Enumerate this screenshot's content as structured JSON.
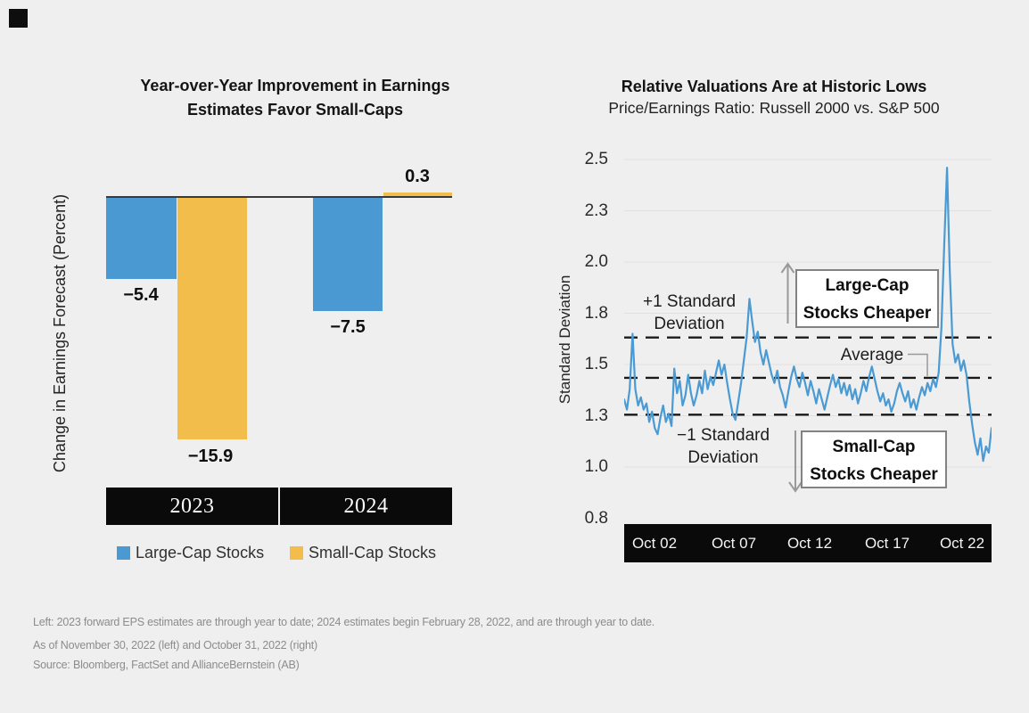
{
  "brand": {
    "logo_mark": "black-square-logo"
  },
  "chart_data": [
    {
      "type": "bar",
      "title": "Year-over-Year Improvement in Earnings Estimates Favor Small-Caps",
      "ylabel": "Change in Earnings Forecast (Percent)",
      "categories": [
        "2023",
        "2024"
      ],
      "series": [
        {
          "name": "Large-Cap Stocks",
          "color": "#4a99d3",
          "values": [
            -5.4,
            -7.5
          ]
        },
        {
          "name": "Small-Cap Stocks",
          "color": "#f3bd4b",
          "values": [
            -15.9,
            0.3
          ]
        }
      ],
      "value_labels": [
        "−5.4",
        "−15.9",
        "−7.5",
        "0.3"
      ],
      "legend_position": "bottom",
      "grid": false
    },
    {
      "type": "line",
      "title": "Relative Valuations Are at Historic Lows",
      "subtitle": "Price/Earnings Ratio: Russell 2000 vs. S&P 500",
      "ylabel": "Standard Deviation",
      "ylim": [
        0.75,
        2.55
      ],
      "grid": true,
      "yticks": [
        {
          "label": "2.5",
          "value": 2.5
        },
        {
          "label": "2.3",
          "value": 2.25
        },
        {
          "label": "2.0",
          "value": 2.0
        },
        {
          "label": "1.8",
          "value": 1.75
        },
        {
          "label": "1.5",
          "value": 1.5
        },
        {
          "label": "1.3",
          "value": 1.25
        },
        {
          "label": "1.0",
          "value": 1.0
        },
        {
          "label": "0.8",
          "value": 0.75
        }
      ],
      "xticks": [
        "Oct 02",
        "Oct 07",
        "Oct 12",
        "Oct 17",
        "Oct 22"
      ],
      "reference_lines": [
        {
          "label": "+1 Standard Deviation",
          "value": 1.632
        },
        {
          "label": "Average",
          "value": 1.435
        },
        {
          "label": "−1 Standard Deviation",
          "value": 1.255
        }
      ],
      "annotations": {
        "upper_box": "Large-Cap Stocks Cheaper",
        "lower_box": "Small-Cap Stocks Cheaper"
      },
      "series": [
        {
          "name": "Russell 2000 vs. S&P 500 P/E ratio",
          "color": "#4a9ad3",
          "values": [
            1.33,
            1.28,
            1.38,
            1.65,
            1.38,
            1.3,
            1.34,
            1.28,
            1.31,
            1.22,
            1.27,
            1.19,
            1.16,
            1.24,
            1.3,
            1.22,
            1.26,
            1.2,
            1.48,
            1.36,
            1.42,
            1.3,
            1.35,
            1.45,
            1.36,
            1.3,
            1.35,
            1.42,
            1.36,
            1.47,
            1.38,
            1.44,
            1.4,
            1.46,
            1.52,
            1.45,
            1.5,
            1.41,
            1.33,
            1.26,
            1.23,
            1.32,
            1.41,
            1.52,
            1.63,
            1.82,
            1.71,
            1.61,
            1.66,
            1.56,
            1.5,
            1.57,
            1.51,
            1.45,
            1.41,
            1.47,
            1.39,
            1.35,
            1.29,
            1.37,
            1.44,
            1.49,
            1.43,
            1.39,
            1.46,
            1.41,
            1.35,
            1.42,
            1.37,
            1.31,
            1.38,
            1.33,
            1.28,
            1.34,
            1.4,
            1.45,
            1.39,
            1.43,
            1.36,
            1.41,
            1.35,
            1.4,
            1.33,
            1.38,
            1.31,
            1.36,
            1.42,
            1.37,
            1.44,
            1.49,
            1.43,
            1.37,
            1.32,
            1.36,
            1.3,
            1.33,
            1.27,
            1.31,
            1.37,
            1.41,
            1.36,
            1.32,
            1.37,
            1.29,
            1.33,
            1.28,
            1.34,
            1.39,
            1.35,
            1.41,
            1.37,
            1.43,
            1.39,
            1.46,
            1.68,
            2.08,
            2.46,
            1.95,
            1.6,
            1.51,
            1.55,
            1.47,
            1.52,
            1.45,
            1.32,
            1.21,
            1.12,
            1.06,
            1.14,
            1.03,
            1.1,
            1.07,
            1.19
          ]
        }
      ]
    }
  ],
  "footnotes": [
    "Left: 2023 forward EPS estimates are through year to date; 2024 estimates begin February 28, 2022, and are through year to date.",
    "As of November 30, 2022 (left) and October 31, 2022 (right)",
    "Source: Bloomberg, FactSet and AllianceBernstein (AB)"
  ]
}
